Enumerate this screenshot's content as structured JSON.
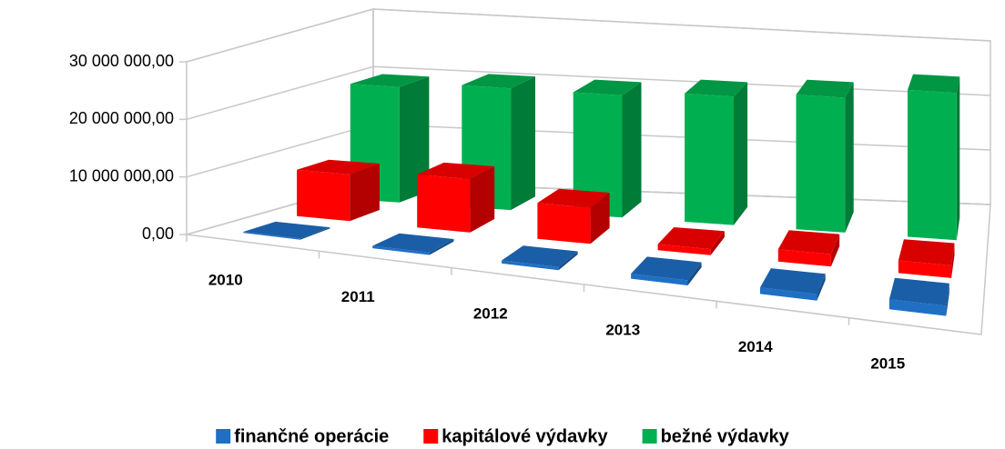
{
  "chart_data": {
    "type": "bar3d",
    "categories": [
      "2010",
      "2011",
      "2012",
      "2013",
      "2014",
      "2015"
    ],
    "series": [
      {
        "name": "finančné operácie",
        "color": "#1f6fc5",
        "values": [
          200000,
          400000,
          500000,
          800000,
          1000000,
          1500000
        ]
      },
      {
        "name": "kapitálové výdavky",
        "color": "#ff0000",
        "values": [
          8000000,
          9000000,
          6000000,
          1000000,
          2000000,
          2000000
        ]
      },
      {
        "name": "bežné výdavky",
        "color": "#00b050",
        "values": [
          20000000,
          21000000,
          21000000,
          22000000,
          23000000,
          25000000
        ]
      }
    ],
    "ylim": [
      0,
      30000000
    ],
    "yticks": [
      {
        "value": 0,
        "label": "0,00"
      },
      {
        "value": 10000000,
        "label": "10 000 000,00"
      },
      {
        "value": 20000000,
        "label": "20 000 000,00"
      },
      {
        "value": 30000000,
        "label": "30 000 000,00"
      }
    ],
    "grid": true,
    "legend": "bottom"
  }
}
